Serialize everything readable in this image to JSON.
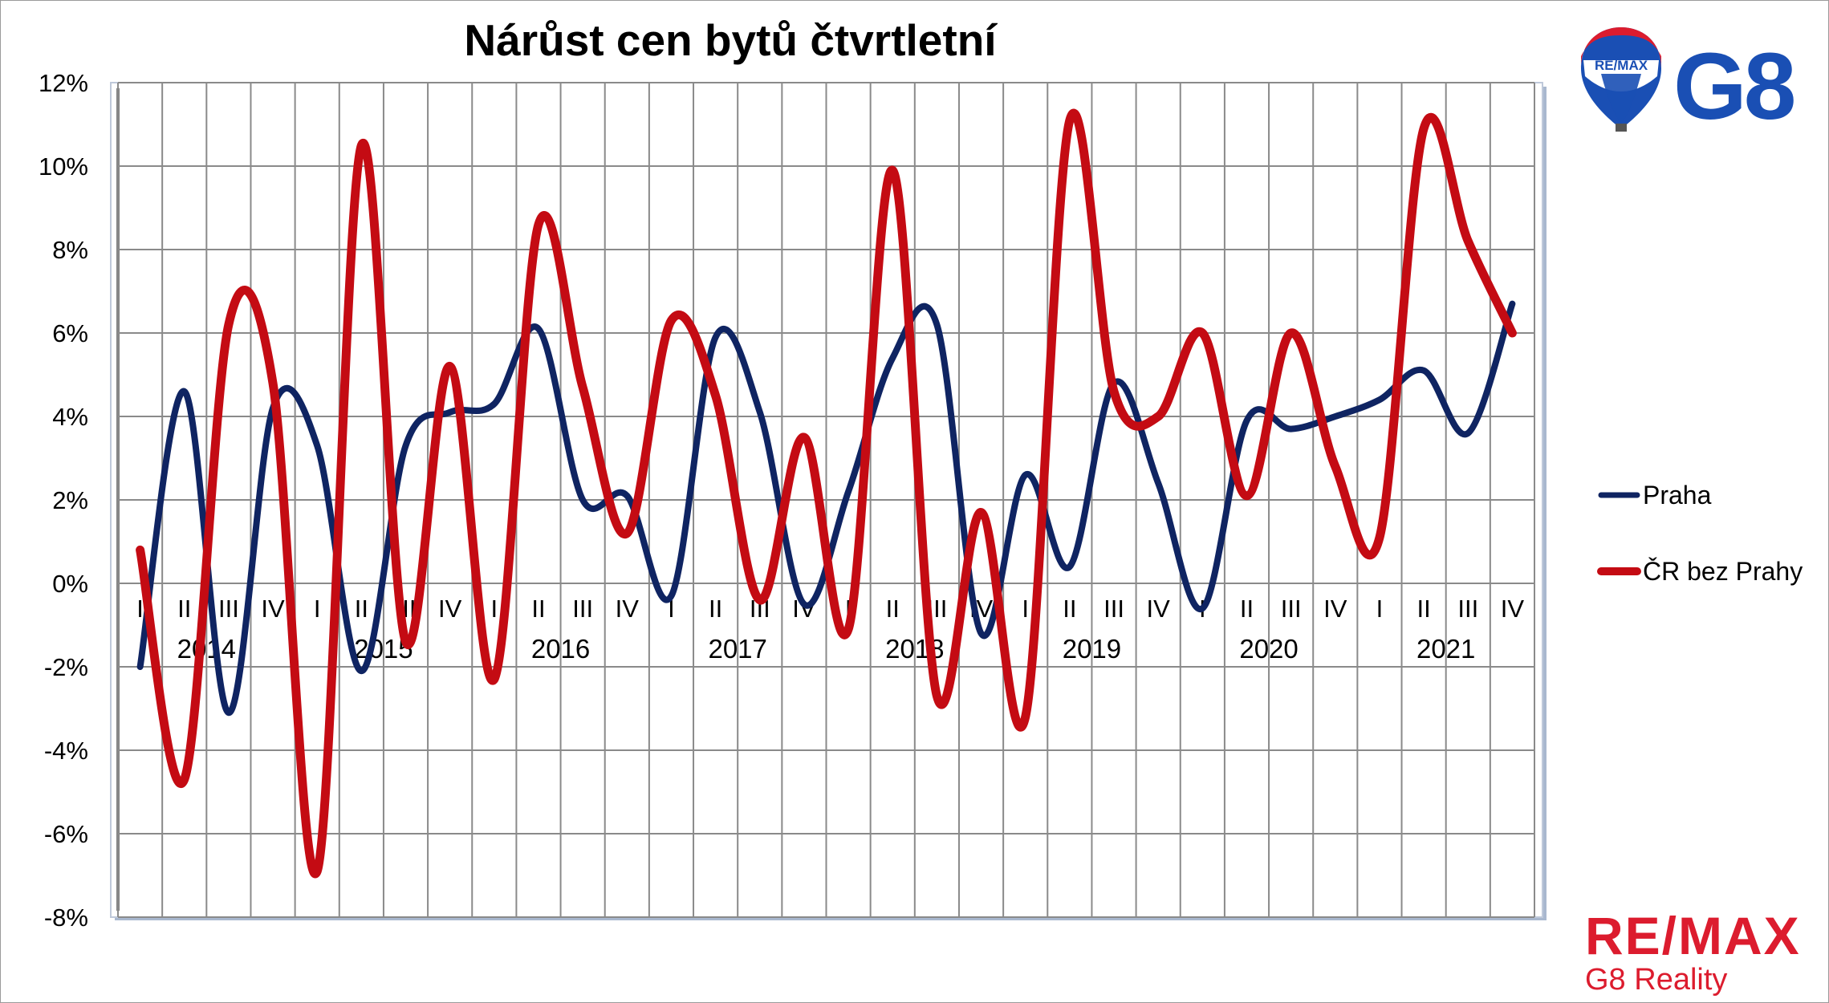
{
  "chart_data": {
    "type": "line",
    "title": "Nárůst cen bytů čtvrtletní",
    "ylim": [
      -8,
      12
    ],
    "y_ticks": [
      "12%",
      "10%",
      "8%",
      "6%",
      "4%",
      "2%",
      "0%",
      "-2%",
      "-4%",
      "-6%",
      "-8%"
    ],
    "y_tick_values": [
      12,
      10,
      8,
      6,
      4,
      2,
      0,
      -2,
      -4,
      -6,
      -8
    ],
    "quarters": [
      "I",
      "II",
      "III",
      "IV",
      "I",
      "II",
      "III",
      "IV",
      "I",
      "II",
      "III",
      "IV",
      "I",
      "II",
      "III",
      "IV",
      "I",
      "II",
      "III",
      "IV",
      "I",
      "II",
      "III",
      "IV",
      "I",
      "II",
      "III",
      "IV",
      "I",
      "II",
      "III",
      "IV"
    ],
    "years": [
      "2014",
      "2015",
      "2016",
      "2017",
      "2018",
      "2019",
      "2020",
      "2021"
    ],
    "grid": true,
    "legend_position": "right",
    "series": [
      {
        "name": "Praha",
        "color": "#0f2462",
        "values": [
          -2.0,
          4.6,
          -3.1,
          4.2,
          3.3,
          -2.1,
          3.3,
          4.1,
          4.3,
          6.1,
          2.0,
          2.1,
          -0.3,
          5.9,
          4.1,
          -0.5,
          2.2,
          5.4,
          6.2,
          -1.2,
          2.6,
          0.4,
          4.8,
          2.4,
          -0.6,
          3.9,
          3.7,
          4.0,
          4.4,
          5.1,
          3.6,
          6.7
        ]
      },
      {
        "name": "ČR bez Prahy",
        "color": "#c40b13",
        "values": [
          0.8,
          -4.7,
          6.2,
          4.8,
          -6.9,
          10.5,
          -1.4,
          5.2,
          -2.3,
          8.6,
          4.7,
          1.2,
          6.3,
          4.5,
          -0.4,
          3.5,
          -1.1,
          9.9,
          -2.7,
          1.7,
          -3.2,
          11.1,
          4.6,
          4.0,
          6.0,
          2.1,
          6.0,
          2.8,
          1.1,
          10.9,
          8.2,
          6.0
        ]
      }
    ]
  },
  "branding": {
    "logo_balloon_text": "RE/MAX",
    "logo_mark": "G8",
    "brand_name": "RE/MAX",
    "brand_sub": "G8 Reality",
    "brand_color": "#dc1c2e",
    "logo_blue": "#1a4fb4"
  }
}
